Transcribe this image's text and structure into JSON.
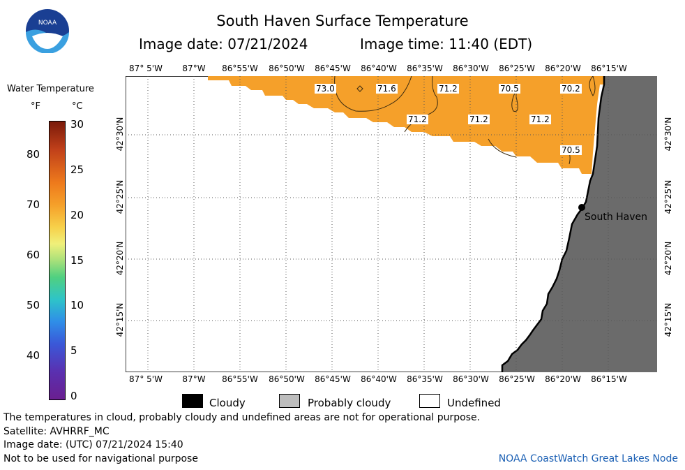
{
  "title": "South Haven Surface Temperature",
  "image_date_label": "Image date: 07/21/2024",
  "image_time_label": "Image time: 11:40 (EDT)",
  "logo_text": "NOAA",
  "colorbar": {
    "title": "Water Temperature",
    "unit_f": "°F",
    "unit_c": "°C",
    "f_ticks": [
      "80",
      "70",
      "60",
      "50",
      "40"
    ],
    "c_ticks": [
      "30",
      "25",
      "20",
      "15",
      "10",
      "5",
      "0"
    ],
    "c_range": [
      0,
      30
    ]
  },
  "longitude_labels": [
    "87° 5'W",
    "87°W",
    "86°55'W",
    "86°50'W",
    "86°45'W",
    "86°40'W",
    "86°35'W",
    "86°30'W",
    "86°25'W",
    "86°20'W",
    "86°15'W"
  ],
  "latitude_labels": [
    "42°30'N",
    "42°25'N",
    "42°20'N",
    "42°15'N"
  ],
  "temperature_labels": [
    "73.0",
    "71.6",
    "71.2",
    "70.5",
    "70.2",
    "71.2",
    "71.2",
    "71.2",
    "70.5"
  ],
  "place_name": "South Haven",
  "legend": {
    "cloudy": "Cloudy",
    "probably_cloudy": "Probably cloudy",
    "undefined": "Undefined"
  },
  "footer": {
    "line1": "The temperatures in cloud, probably cloudy and undefined areas are not for operational purpose.",
    "line2": "Satellite: AVHRRF_MC",
    "line3": "Image date: (UTC) 07/21/2024  15:40",
    "line4": "Not to be used for navigational purpose",
    "credit": "NOAA CoastWatch Great Lakes Node"
  },
  "colors": {
    "land": "#6b6b6b",
    "water_warm": "#f5a02a",
    "water_warm_dark": "#ef8f1c",
    "credit": "#1a5fb4"
  }
}
